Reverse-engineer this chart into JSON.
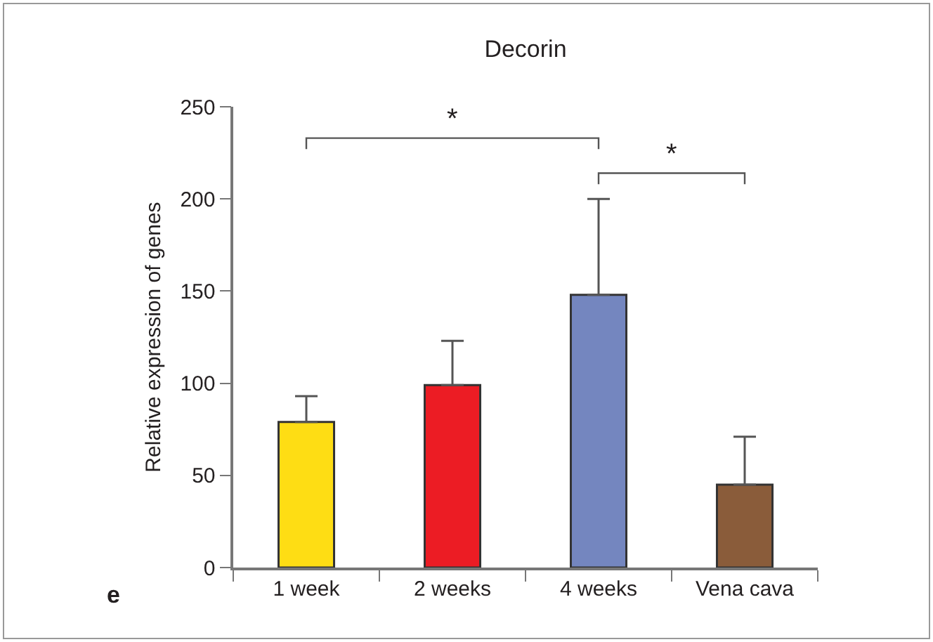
{
  "chart_data": {
    "type": "bar",
    "title": "Decorin",
    "ylabel": "Relative expression of genes",
    "categories": [
      "1 week",
      "2 weeks",
      "4 weeks",
      "Vena cava"
    ],
    "values": [
      79,
      99,
      148,
      45
    ],
    "errors": [
      [
        79,
        93
      ],
      [
        99,
        123
      ],
      [
        148,
        200
      ],
      [
        45,
        71
      ]
    ],
    "colors": [
      "#fedd14",
      "#ec1c24",
      "#7486bf",
      "#8a5c3a"
    ],
    "ylim": [
      0,
      250
    ],
    "yticks": [
      0,
      50,
      100,
      150,
      200,
      250
    ],
    "grid": false,
    "annotations": [
      "*",
      "*",
      "e"
    ]
  }
}
